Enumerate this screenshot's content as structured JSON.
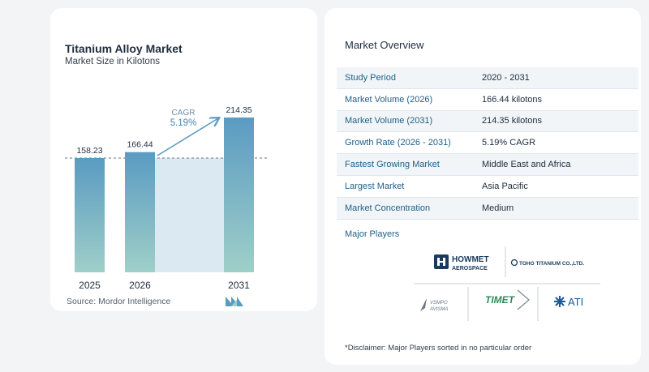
{
  "chart_data": {
    "type": "bar",
    "title": "Titanium Alloy Market",
    "subtitle": "Market Size in Kilotons",
    "categories": [
      "2025",
      "2026",
      "2031"
    ],
    "values": [
      158.23,
      166.44,
      214.35
    ],
    "value_labels": [
      "158.23",
      "166.44",
      "214.35"
    ],
    "ylim": [
      0,
      214.35
    ],
    "cagr_label": "CAGR",
    "cagr_value": "5.19%",
    "bar_color": "#5a9bc2",
    "bar_color_light": "#9fcfc8",
    "background_band_color": "#dbe9f2",
    "reference_line": "dashed at 2025 value"
  },
  "source": "Source:  Mordor Intelligence",
  "overview": {
    "title": "Market Overview",
    "rows": [
      {
        "label": "Study Period",
        "value": "2020 - 2031"
      },
      {
        "label": "Market Volume (2026)",
        "value": "166.44 kilotons"
      },
      {
        "label": "Market Volume (2031)",
        "value": "214.35 kilotons"
      },
      {
        "label": "Growth Rate (2026 - 2031)",
        "value": "5.19% CAGR"
      },
      {
        "label": "Fastest Growing Market",
        "value": "Middle East and Africa"
      },
      {
        "label": "Largest Market",
        "value": "Asia Pacific"
      },
      {
        "label": "Market Concentration",
        "value": "Medium"
      }
    ]
  },
  "players": {
    "title": "Major Players",
    "howmet_line1": "HOWMET",
    "howmet_line2": "AEROSPACE",
    "toho": "TOHO TITANIUM CO.,LTD.",
    "vsmpo_line1": "VSMPO",
    "vsmpo_line2": "AVISMA",
    "timet": "TIMET",
    "ati": "ATI"
  },
  "disclaimer": "*Disclaimer: Major Players sorted in no particular order"
}
